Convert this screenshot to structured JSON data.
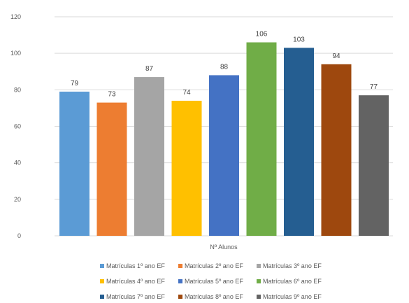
{
  "chart_data": {
    "type": "bar",
    "title": "",
    "xlabel": "Nº Alunos",
    "ylabel": "",
    "ylim": [
      0,
      120
    ],
    "yticks": [
      0,
      20,
      40,
      60,
      80,
      100,
      120
    ],
    "grid": true,
    "legend_position": "bottom",
    "series": [
      {
        "name": "Matrículas 1º ano EF",
        "value": 79,
        "color": "#5B9BD5"
      },
      {
        "name": "Matrículas 2º ano EF",
        "value": 73,
        "color": "#ED7D31"
      },
      {
        "name": "Matrículas 3º ano EF",
        "value": 87,
        "color": "#A5A5A5"
      },
      {
        "name": "Matrículas 4º ano EF",
        "value": 74,
        "color": "#FFC000"
      },
      {
        "name": "Matrículas 5º ano EF",
        "value": 88,
        "color": "#4472C4"
      },
      {
        "name": "Matrículas 6º ano EF",
        "value": 106,
        "color": "#70AD47"
      },
      {
        "name": "Matrículas 7º ano EF",
        "value": 103,
        "color": "#255E91"
      },
      {
        "name": "Matrículas 8º ano EF",
        "value": 94,
        "color": "#9E480E"
      },
      {
        "name": "Matrículas 9º ano EF",
        "value": 77,
        "color": "#636363"
      }
    ]
  }
}
